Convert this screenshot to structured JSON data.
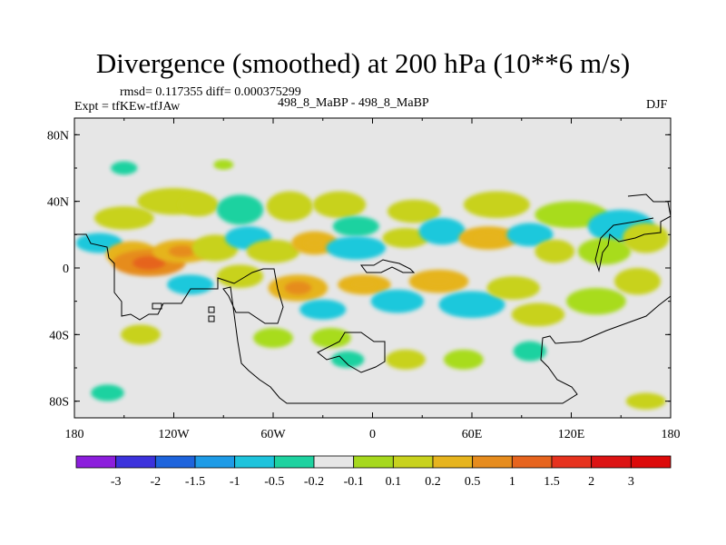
{
  "header": {
    "title": "Divergence (smoothed) at 200 hPa (10**6 m/s)",
    "rmsd": "rmsd= 0.117355 diff= 0.000375299",
    "expt": "Expt = tfKEw-tfJAw",
    "cases": "498_8_MaBP - 498_8_MaBP",
    "season": "DJF"
  },
  "colors": {
    "background_field": "#e6e6e6",
    "palette": [
      "#8a2be2",
      "#3a30e0",
      "#1e64e0",
      "#1ea0e6",
      "#1ec8dc",
      "#1ed2a0",
      "#e6e6e6",
      "#a8dc1e",
      "#c8d21e",
      "#e6b41e",
      "#e68c1e",
      "#e6641e",
      "#e6321e",
      "#e61414"
    ]
  },
  "chart_data": {
    "type": "heatmap",
    "title": "Divergence (smoothed) at 200 hPa (10**6 m/s)",
    "xlabel": "",
    "ylabel": "",
    "x_ticks": [
      "180",
      "120W",
      "60W",
      "0",
      "60E",
      "120E",
      "180"
    ],
    "y_ticks": [
      "80N",
      "40N",
      "0",
      "40S",
      "80S"
    ],
    "xlim": [
      -180,
      180
    ],
    "ylim": [
      -90,
      90
    ],
    "colorbar": {
      "labels": [
        "-3",
        "-2",
        "-1.5",
        "-1",
        "-0.5",
        "-0.2",
        "-0.1",
        "0.1",
        "0.2",
        "0.5",
        "1",
        "1.5",
        "2",
        "3"
      ]
    },
    "blobs": [
      {
        "lon": -150,
        "lat": 30,
        "rx": 18,
        "ry": 7,
        "v": 0.3
      },
      {
        "lon": -120,
        "lat": 40,
        "rx": 22,
        "ry": 8,
        "v": 0.5
      },
      {
        "lon": -105,
        "lat": 38,
        "rx": 12,
        "ry": 7,
        "v": 0.3
      },
      {
        "lon": -80,
        "lat": 35,
        "rx": 14,
        "ry": 9,
        "v": -0.2
      },
      {
        "lon": -50,
        "lat": 37,
        "rx": 14,
        "ry": 9,
        "v": 0.4
      },
      {
        "lon": -20,
        "lat": 38,
        "rx": 16,
        "ry": 8,
        "v": 0.4
      },
      {
        "lon": -10,
        "lat": 25,
        "rx": 14,
        "ry": 6,
        "v": -0.2
      },
      {
        "lon": 25,
        "lat": 34,
        "rx": 16,
        "ry": 7,
        "v": 0.3
      },
      {
        "lon": 75,
        "lat": 38,
        "rx": 20,
        "ry": 8,
        "v": 0.4
      },
      {
        "lon": 120,
        "lat": 32,
        "rx": 22,
        "ry": 8,
        "v": 0.2
      },
      {
        "lon": 150,
        "lat": 25,
        "rx": 20,
        "ry": 10,
        "v": -0.3
      },
      {
        "lon": -165,
        "lat": 15,
        "rx": 14,
        "ry": 6,
        "v": -0.3
      },
      {
        "lon": -145,
        "lat": 8,
        "rx": 16,
        "ry": 8,
        "v": 0.6
      },
      {
        "lon": -135,
        "lat": 3,
        "rx": 22,
        "ry": 8,
        "v": 1.2
      },
      {
        "lon": -115,
        "lat": 10,
        "rx": 18,
        "ry": 7,
        "v": 0.8
      },
      {
        "lon": -95,
        "lat": 12,
        "rx": 14,
        "ry": 8,
        "v": 0.5
      },
      {
        "lon": -75,
        "lat": 18,
        "rx": 14,
        "ry": 7,
        "v": -0.3
      },
      {
        "lon": -60,
        "lat": 10,
        "rx": 16,
        "ry": 7,
        "v": 0.5
      },
      {
        "lon": -35,
        "lat": 15,
        "rx": 14,
        "ry": 7,
        "v": 0.6
      },
      {
        "lon": -10,
        "lat": 12,
        "rx": 18,
        "ry": 7,
        "v": -0.3
      },
      {
        "lon": 20,
        "lat": 18,
        "rx": 14,
        "ry": 6,
        "v": 0.4
      },
      {
        "lon": 42,
        "lat": 22,
        "rx": 14,
        "ry": 8,
        "v": -0.4
      },
      {
        "lon": 70,
        "lat": 18,
        "rx": 18,
        "ry": 7,
        "v": 0.6
      },
      {
        "lon": 95,
        "lat": 20,
        "rx": 14,
        "ry": 7,
        "v": -0.3
      },
      {
        "lon": 110,
        "lat": 10,
        "rx": 12,
        "ry": 7,
        "v": 0.3
      },
      {
        "lon": 140,
        "lat": 10,
        "rx": 16,
        "ry": 8,
        "v": 0.2
      },
      {
        "lon": 165,
        "lat": 18,
        "rx": 14,
        "ry": 9,
        "v": 0.5
      },
      {
        "lon": -110,
        "lat": -10,
        "rx": 14,
        "ry": 6,
        "v": -0.3
      },
      {
        "lon": -80,
        "lat": -5,
        "rx": 14,
        "ry": 7,
        "v": 0.5
      },
      {
        "lon": -45,
        "lat": -12,
        "rx": 18,
        "ry": 8,
        "v": 0.8
      },
      {
        "lon": -30,
        "lat": -25,
        "rx": 14,
        "ry": 6,
        "v": -0.3
      },
      {
        "lon": -5,
        "lat": -10,
        "rx": 16,
        "ry": 6,
        "v": 0.6
      },
      {
        "lon": 15,
        "lat": -20,
        "rx": 16,
        "ry": 7,
        "v": -0.4
      },
      {
        "lon": 40,
        "lat": -8,
        "rx": 18,
        "ry": 7,
        "v": 0.7
      },
      {
        "lon": 60,
        "lat": -22,
        "rx": 20,
        "ry": 8,
        "v": -0.4
      },
      {
        "lon": 85,
        "lat": -12,
        "rx": 16,
        "ry": 7,
        "v": 0.5
      },
      {
        "lon": 100,
        "lat": -28,
        "rx": 16,
        "ry": 7,
        "v": 0.3
      },
      {
        "lon": 135,
        "lat": -20,
        "rx": 18,
        "ry": 8,
        "v": 0.2
      },
      {
        "lon": 160,
        "lat": -8,
        "rx": 14,
        "ry": 8,
        "v": 0.3
      },
      {
        "lon": -140,
        "lat": -40,
        "rx": 12,
        "ry": 6,
        "v": 0.3
      },
      {
        "lon": -60,
        "lat": -42,
        "rx": 12,
        "ry": 6,
        "v": 0.2
      },
      {
        "lon": -25,
        "lat": -42,
        "rx": 12,
        "ry": 6,
        "v": 0.2
      },
      {
        "lon": -15,
        "lat": -55,
        "rx": 10,
        "ry": 5,
        "v": -0.2
      },
      {
        "lon": 20,
        "lat": -55,
        "rx": 12,
        "ry": 6,
        "v": 0.3
      },
      {
        "lon": 55,
        "lat": -55,
        "rx": 12,
        "ry": 6,
        "v": 0.2
      },
      {
        "lon": 95,
        "lat": -50,
        "rx": 10,
        "ry": 6,
        "v": -0.2
      },
      {
        "lon": -160,
        "lat": -75,
        "rx": 10,
        "ry": 5,
        "v": -0.2
      },
      {
        "lon": 165,
        "lat": -80,
        "rx": 12,
        "ry": 5,
        "v": 0.3
      },
      {
        "lon": -150,
        "lat": 60,
        "rx": 8,
        "ry": 4,
        "v": -0.2
      },
      {
        "lon": -90,
        "lat": 62,
        "rx": 6,
        "ry": 3,
        "v": 0.2
      }
    ]
  }
}
